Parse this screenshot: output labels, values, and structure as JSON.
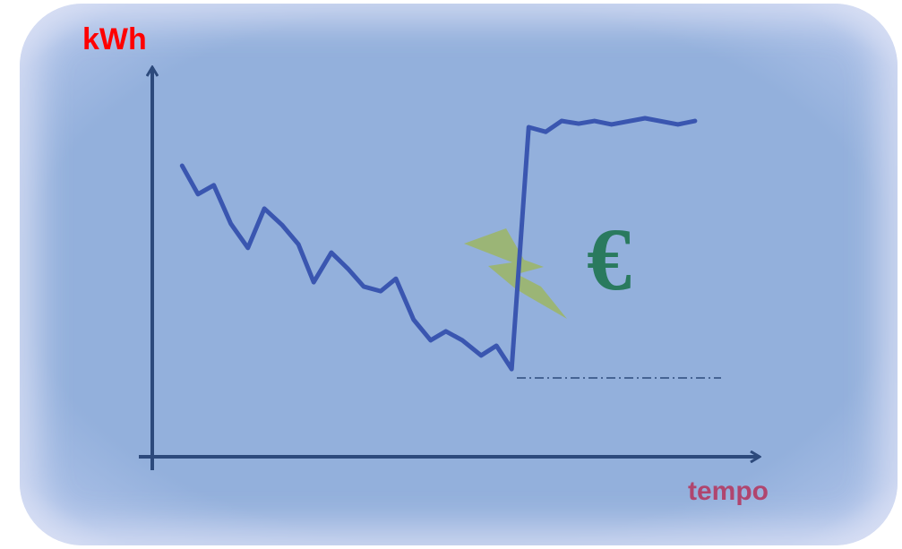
{
  "chart_data": {
    "type": "line",
    "ylabel": "kWh",
    "xlabel": "tempo",
    "annotation": "€",
    "xlim": [
      0,
      100
    ],
    "ylim": [
      0,
      100
    ],
    "color": "#3a56b0",
    "x": [
      4.9,
      7.5,
      10.1,
      12.9,
      15.7,
      18.4,
      21.3,
      24.0,
      26.5,
      29.4,
      32.1,
      34.7,
      37.5,
      40.0,
      42.9,
      45.7,
      48.2,
      50.9,
      54.0,
      56.5,
      59.0,
      61.8,
      64.6,
      67.2,
      70.0,
      72.6,
      75.4,
      80.9,
      86.3,
      89.1
    ],
    "values": [
      74.7,
      67.4,
      69.7,
      59.8,
      53.6,
      63.7,
      59.5,
      54.5,
      44.8,
      52.4,
      48.3,
      43.7,
      42.5,
      45.7,
      35.2,
      29.9,
      32.2,
      29.9,
      26.0,
      28.5,
      22.5,
      84.6,
      83.4,
      86.2,
      85.5,
      86.2,
      85.3,
      86.9,
      85.3,
      86.2
    ]
  }
}
